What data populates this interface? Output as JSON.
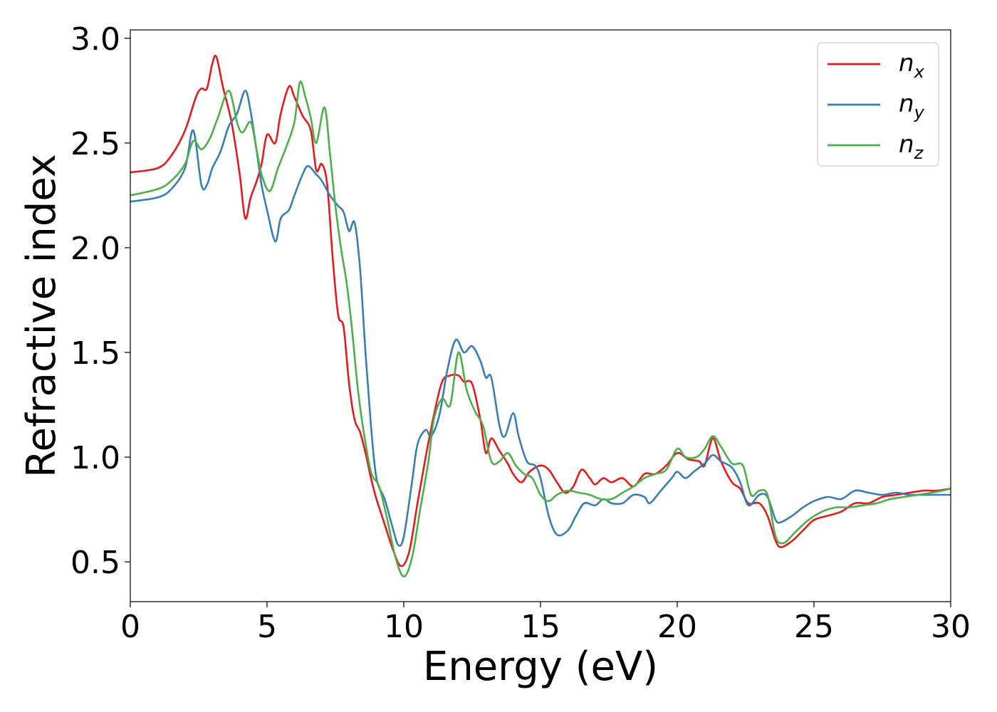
{
  "chart_data": {
    "type": "line",
    "xlabel": "Energy (eV)",
    "ylabel": "Refractive index",
    "xlim": [
      0,
      30
    ],
    "ylim": [
      0.31,
      3.04
    ],
    "xticks": [
      0,
      5,
      10,
      15,
      20,
      25,
      30
    ],
    "xtick_labels": [
      "0",
      "5",
      "10",
      "15",
      "20",
      "25",
      "30"
    ],
    "yticks": [
      0.5,
      1.0,
      1.5,
      2.0,
      2.5,
      3.0
    ],
    "ytick_labels": [
      "0.5",
      "1.0",
      "1.5",
      "2.0",
      "2.5",
      "3.0"
    ],
    "grid": false,
    "legend_position": "top-right",
    "series": [
      {
        "name": "n",
        "subscript": "x",
        "color": "#e41a1c",
        "points": [
          [
            0,
            2.36
          ],
          [
            1,
            2.38
          ],
          [
            1.5,
            2.44
          ],
          [
            2,
            2.56
          ],
          [
            2.4,
            2.72
          ],
          [
            2.6,
            2.76
          ],
          [
            2.8,
            2.76
          ],
          [
            3.0,
            2.88
          ],
          [
            3.15,
            2.91
          ],
          [
            3.4,
            2.76
          ],
          [
            3.7,
            2.6
          ],
          [
            4.0,
            2.35
          ],
          [
            4.2,
            2.14
          ],
          [
            4.4,
            2.24
          ],
          [
            4.6,
            2.31
          ],
          [
            4.8,
            2.4
          ],
          [
            5.0,
            2.54
          ],
          [
            5.3,
            2.5
          ],
          [
            5.5,
            2.64
          ],
          [
            5.8,
            2.77
          ],
          [
            6.0,
            2.72
          ],
          [
            6.3,
            2.63
          ],
          [
            6.6,
            2.56
          ],
          [
            6.8,
            2.37
          ],
          [
            7.0,
            2.4
          ],
          [
            7.2,
            2.3
          ],
          [
            7.4,
            1.95
          ],
          [
            7.6,
            1.68
          ],
          [
            7.8,
            1.62
          ],
          [
            8.0,
            1.35
          ],
          [
            8.2,
            1.18
          ],
          [
            8.4,
            1.12
          ],
          [
            8.6,
            1.02
          ],
          [
            8.8,
            0.9
          ],
          [
            9.0,
            0.8
          ],
          [
            9.3,
            0.68
          ],
          [
            9.6,
            0.56
          ],
          [
            9.9,
            0.48
          ],
          [
            10.2,
            0.55
          ],
          [
            10.5,
            0.78
          ],
          [
            10.8,
            1.0
          ],
          [
            11.1,
            1.2
          ],
          [
            11.4,
            1.36
          ],
          [
            11.7,
            1.39
          ],
          [
            12.0,
            1.39
          ],
          [
            12.2,
            1.36
          ],
          [
            12.5,
            1.35
          ],
          [
            12.8,
            1.18
          ],
          [
            13.0,
            1.02
          ],
          [
            13.2,
            1.09
          ],
          [
            13.5,
            1.03
          ],
          [
            13.8,
            0.97
          ],
          [
            14.0,
            0.92
          ],
          [
            14.3,
            0.88
          ],
          [
            14.6,
            0.93
          ],
          [
            15.0,
            0.96
          ],
          [
            15.3,
            0.94
          ],
          [
            15.6,
            0.88
          ],
          [
            15.9,
            0.83
          ],
          [
            16.2,
            0.86
          ],
          [
            16.5,
            0.94
          ],
          [
            16.8,
            0.9
          ],
          [
            17.0,
            0.87
          ],
          [
            17.3,
            0.9
          ],
          [
            17.6,
            0.88
          ],
          [
            18.0,
            0.9
          ],
          [
            18.4,
            0.86
          ],
          [
            18.8,
            0.92
          ],
          [
            19.2,
            0.92
          ],
          [
            19.6,
            0.96
          ],
          [
            20.0,
            1.02
          ],
          [
            20.4,
            0.99
          ],
          [
            20.8,
            0.98
          ],
          [
            21.0,
            0.96
          ],
          [
            21.3,
            1.09
          ],
          [
            21.6,
            0.98
          ],
          [
            22.0,
            0.88
          ],
          [
            22.3,
            0.85
          ],
          [
            22.6,
            0.78
          ],
          [
            23.0,
            0.78
          ],
          [
            23.3,
            0.72
          ],
          [
            23.6,
            0.6
          ],
          [
            23.8,
            0.57
          ],
          [
            24.2,
            0.6
          ],
          [
            24.6,
            0.65
          ],
          [
            25.0,
            0.7
          ],
          [
            25.5,
            0.72
          ],
          [
            26.0,
            0.74
          ],
          [
            26.5,
            0.78
          ],
          [
            27.0,
            0.78
          ],
          [
            27.5,
            0.81
          ],
          [
            28.0,
            0.82
          ],
          [
            28.5,
            0.83
          ],
          [
            29.0,
            0.84
          ],
          [
            29.5,
            0.84
          ],
          [
            30,
            0.85
          ]
        ]
      },
      {
        "name": "n",
        "subscript": "y",
        "color": "#377eb8",
        "points": [
          [
            0,
            2.22
          ],
          [
            1,
            2.24
          ],
          [
            1.5,
            2.28
          ],
          [
            2,
            2.38
          ],
          [
            2.3,
            2.56
          ],
          [
            2.6,
            2.3
          ],
          [
            2.8,
            2.3
          ],
          [
            3.0,
            2.38
          ],
          [
            3.3,
            2.46
          ],
          [
            3.6,
            2.58
          ],
          [
            3.9,
            2.64
          ],
          [
            4.2,
            2.75
          ],
          [
            4.4,
            2.65
          ],
          [
            4.6,
            2.48
          ],
          [
            4.8,
            2.3
          ],
          [
            5.0,
            2.18
          ],
          [
            5.3,
            2.03
          ],
          [
            5.5,
            2.14
          ],
          [
            5.8,
            2.18
          ],
          [
            6.0,
            2.25
          ],
          [
            6.3,
            2.35
          ],
          [
            6.5,
            2.39
          ],
          [
            6.8,
            2.35
          ],
          [
            7.0,
            2.32
          ],
          [
            7.3,
            2.25
          ],
          [
            7.6,
            2.2
          ],
          [
            7.8,
            2.17
          ],
          [
            8.0,
            2.08
          ],
          [
            8.2,
            2.12
          ],
          [
            8.4,
            1.9
          ],
          [
            8.6,
            1.5
          ],
          [
            8.8,
            1.15
          ],
          [
            9.0,
            0.9
          ],
          [
            9.3,
            0.8
          ],
          [
            9.6,
            0.66
          ],
          [
            9.8,
            0.58
          ],
          [
            10.0,
            0.62
          ],
          [
            10.3,
            0.88
          ],
          [
            10.5,
            1.06
          ],
          [
            10.8,
            1.13
          ],
          [
            11.0,
            1.1
          ],
          [
            11.3,
            1.2
          ],
          [
            11.6,
            1.42
          ],
          [
            11.9,
            1.56
          ],
          [
            12.2,
            1.5
          ],
          [
            12.5,
            1.53
          ],
          [
            12.8,
            1.46
          ],
          [
            13.0,
            1.38
          ],
          [
            13.2,
            1.38
          ],
          [
            13.5,
            1.15
          ],
          [
            13.7,
            1.1
          ],
          [
            14.0,
            1.21
          ],
          [
            14.2,
            1.1
          ],
          [
            14.5,
            0.98
          ],
          [
            14.8,
            0.96
          ],
          [
            15.0,
            0.9
          ],
          [
            15.3,
            0.72
          ],
          [
            15.6,
            0.63
          ],
          [
            16.0,
            0.65
          ],
          [
            16.3,
            0.72
          ],
          [
            16.6,
            0.78
          ],
          [
            17.0,
            0.77
          ],
          [
            17.3,
            0.8
          ],
          [
            17.6,
            0.78
          ],
          [
            18.0,
            0.78
          ],
          [
            18.4,
            0.82
          ],
          [
            18.8,
            0.81
          ],
          [
            19.0,
            0.78
          ],
          [
            19.4,
            0.84
          ],
          [
            19.8,
            0.9
          ],
          [
            20.0,
            0.93
          ],
          [
            20.3,
            0.9
          ],
          [
            20.6,
            0.93
          ],
          [
            21.0,
            0.97
          ],
          [
            21.3,
            1.01
          ],
          [
            21.6,
            0.98
          ],
          [
            22.0,
            0.95
          ],
          [
            22.3,
            0.88
          ],
          [
            22.6,
            0.77
          ],
          [
            23.0,
            0.82
          ],
          [
            23.3,
            0.81
          ],
          [
            23.6,
            0.7
          ],
          [
            23.8,
            0.69
          ],
          [
            24.2,
            0.72
          ],
          [
            24.6,
            0.76
          ],
          [
            25.0,
            0.79
          ],
          [
            25.5,
            0.81
          ],
          [
            26.0,
            0.8
          ],
          [
            26.5,
            0.84
          ],
          [
            27.0,
            0.83
          ],
          [
            27.5,
            0.82
          ],
          [
            28.0,
            0.83
          ],
          [
            28.5,
            0.82
          ],
          [
            29.0,
            0.82
          ],
          [
            29.5,
            0.82
          ],
          [
            30,
            0.82
          ]
        ]
      },
      {
        "name": "n",
        "subscript": "z",
        "color": "#4daf4a",
        "points": [
          [
            0,
            2.25
          ],
          [
            1,
            2.28
          ],
          [
            1.5,
            2.32
          ],
          [
            2,
            2.4
          ],
          [
            2.3,
            2.51
          ],
          [
            2.6,
            2.47
          ],
          [
            2.9,
            2.52
          ],
          [
            3.2,
            2.62
          ],
          [
            3.6,
            2.75
          ],
          [
            3.9,
            2.6
          ],
          [
            4.1,
            2.55
          ],
          [
            4.4,
            2.6
          ],
          [
            4.6,
            2.48
          ],
          [
            4.8,
            2.35
          ],
          [
            5.1,
            2.27
          ],
          [
            5.4,
            2.38
          ],
          [
            5.7,
            2.48
          ],
          [
            6.0,
            2.6
          ],
          [
            6.2,
            2.79
          ],
          [
            6.4,
            2.72
          ],
          [
            6.6,
            2.62
          ],
          [
            6.8,
            2.5
          ],
          [
            7.1,
            2.67
          ],
          [
            7.3,
            2.45
          ],
          [
            7.5,
            2.2
          ],
          [
            7.7,
            2.0
          ],
          [
            7.9,
            1.84
          ],
          [
            8.1,
            1.62
          ],
          [
            8.3,
            1.35
          ],
          [
            8.5,
            1.15
          ],
          [
            8.8,
            0.93
          ],
          [
            9.1,
            0.86
          ],
          [
            9.4,
            0.7
          ],
          [
            9.7,
            0.52
          ],
          [
            10.0,
            0.43
          ],
          [
            10.3,
            0.52
          ],
          [
            10.6,
            0.75
          ],
          [
            10.9,
            0.98
          ],
          [
            11.1,
            1.18
          ],
          [
            11.4,
            1.28
          ],
          [
            11.7,
            1.25
          ],
          [
            12.0,
            1.5
          ],
          [
            12.3,
            1.32
          ],
          [
            12.6,
            1.22
          ],
          [
            12.9,
            1.15
          ],
          [
            13.2,
            0.98
          ],
          [
            13.5,
            0.98
          ],
          [
            13.8,
            1.02
          ],
          [
            14.1,
            0.96
          ],
          [
            14.4,
            0.92
          ],
          [
            14.7,
            0.9
          ],
          [
            15.0,
            0.82
          ],
          [
            15.3,
            0.79
          ],
          [
            15.6,
            0.82
          ],
          [
            16.0,
            0.84
          ],
          [
            16.4,
            0.83
          ],
          [
            16.8,
            0.82
          ],
          [
            17.2,
            0.8
          ],
          [
            17.6,
            0.8
          ],
          [
            18.0,
            0.83
          ],
          [
            18.4,
            0.86
          ],
          [
            18.8,
            0.9
          ],
          [
            19.2,
            0.92
          ],
          [
            19.6,
            0.94
          ],
          [
            20.0,
            1.04
          ],
          [
            20.3,
            1.0
          ],
          [
            20.7,
            1.0
          ],
          [
            21.0,
            1.04
          ],
          [
            21.3,
            1.1
          ],
          [
            21.6,
            1.05
          ],
          [
            22.0,
            0.97
          ],
          [
            22.4,
            0.96
          ],
          [
            22.7,
            0.82
          ],
          [
            23.0,
            0.84
          ],
          [
            23.3,
            0.82
          ],
          [
            23.6,
            0.62
          ],
          [
            23.9,
            0.59
          ],
          [
            24.3,
            0.64
          ],
          [
            24.8,
            0.7
          ],
          [
            25.3,
            0.74
          ],
          [
            25.8,
            0.76
          ],
          [
            26.3,
            0.76
          ],
          [
            26.8,
            0.77
          ],
          [
            27.3,
            0.78
          ],
          [
            27.8,
            0.8
          ],
          [
            28.3,
            0.81
          ],
          [
            28.8,
            0.82
          ],
          [
            29.3,
            0.83
          ],
          [
            29.7,
            0.84
          ],
          [
            30,
            0.85
          ]
        ]
      }
    ]
  }
}
